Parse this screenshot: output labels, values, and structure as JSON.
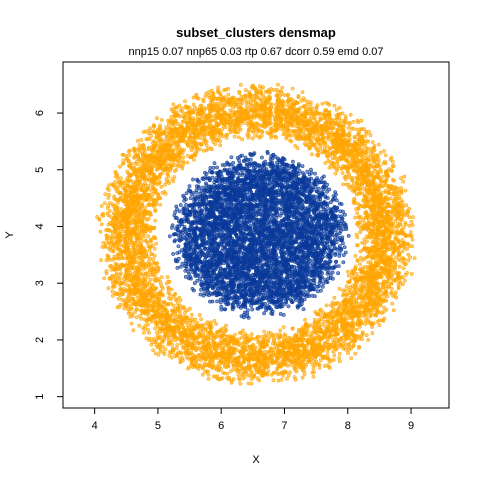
{
  "chart_data": {
    "type": "scatter",
    "title": "subset_clusters densmap",
    "subtitle": "nnp15 0.07 nnp65 0.03 rtp 0.67 dcorr 0.59 emd 0.07",
    "xlabel": "X",
    "ylabel": "Y",
    "xlim": [
      3.5,
      9.6
    ],
    "ylim": [
      0.8,
      6.9
    ],
    "x_ticks": [
      "4",
      "5",
      "6",
      "7",
      "8",
      "9"
    ],
    "y_ticks": [
      "1",
      "2",
      "3",
      "4",
      "5",
      "6"
    ],
    "grid": false,
    "legend": "none",
    "series": [
      {
        "shape": "ring",
        "color": "#FFA500",
        "center": [
          6.55,
          3.85
        ],
        "radius_x": [
          1.55,
          2.55
        ],
        "radius_y": [
          1.65,
          2.7
        ],
        "n_points": 6500
      },
      {
        "shape": "disc",
        "color": "#0A3A9A",
        "center": [
          6.6,
          3.85
        ],
        "radius_x": [
          0,
          1.45
        ],
        "radius_y": [
          0,
          1.5
        ],
        "n_points": 5000
      }
    ]
  }
}
